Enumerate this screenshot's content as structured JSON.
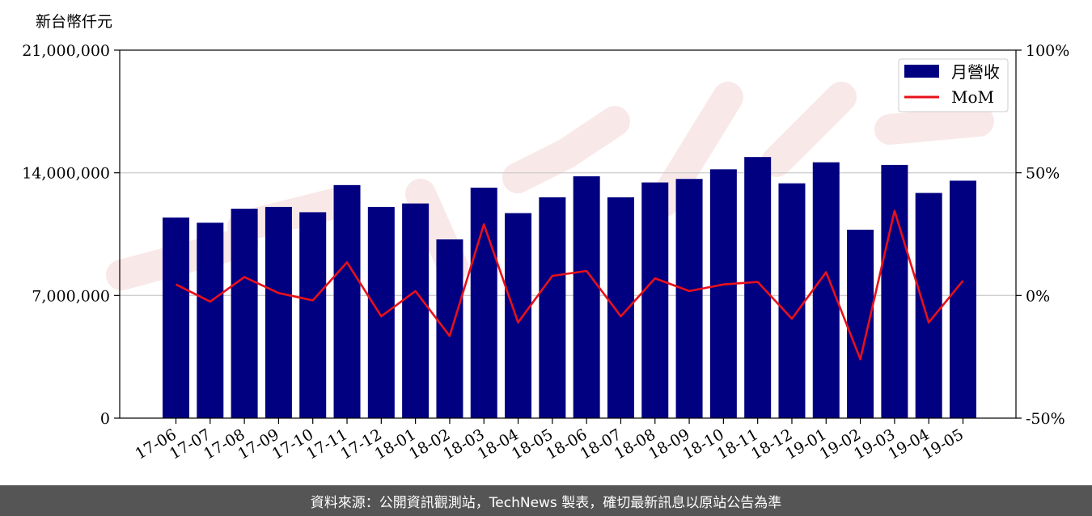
{
  "chart_data": {
    "type": "bar",
    "y_unit_label": "新台幣仟元",
    "categories": [
      "17-06",
      "17-07",
      "17-08",
      "17-09",
      "17-10",
      "17-11",
      "17-12",
      "18-01",
      "18-02",
      "18-03",
      "18-04",
      "18-05",
      "18-06",
      "18-07",
      "18-08",
      "18-09",
      "18-10",
      "18-11",
      "18-12",
      "19-01",
      "19-02",
      "19-03",
      "19-04",
      "19-05"
    ],
    "series": [
      {
        "name": "月營收",
        "axis": "left",
        "kind": "bar",
        "color": "#000080",
        "values": [
          11450000,
          11150000,
          11950000,
          12050000,
          11750000,
          13300000,
          12050000,
          12250000,
          10200000,
          13150000,
          11700000,
          12600000,
          13800000,
          12600000,
          13450000,
          13650000,
          14200000,
          14900000,
          13400000,
          14600000,
          10750000,
          14450000,
          12850000,
          13550000
        ]
      },
      {
        "name": "MoM",
        "axis": "right",
        "kind": "line",
        "color": "#e8101a",
        "values": [
          4.5,
          -2.5,
          7.5,
          1.0,
          -2.0,
          13.5,
          -8.5,
          1.8,
          -16.5,
          29.0,
          -11.0,
          8.0,
          10.0,
          -8.5,
          7.0,
          1.8,
          4.5,
          5.5,
          -9.5,
          9.5,
          -26.0,
          34.5,
          -11.0,
          6.0
        ]
      }
    ],
    "ylim_left": [
      0,
      21000000
    ],
    "yticks_left": [
      "0",
      "7,000,000",
      "14,000,000",
      "21,000,000"
    ],
    "ylim_right": [
      -50,
      100
    ],
    "yticks_right": [
      "-50%",
      "0%",
      "50%",
      "100%"
    ],
    "grid": "horizontal at left-axis ticks",
    "legend_position": "top-right"
  },
  "footer": {
    "text": "資料來源：公開資訊觀測站，TechNews 製表，確切最新訊息以原站公告為準"
  }
}
